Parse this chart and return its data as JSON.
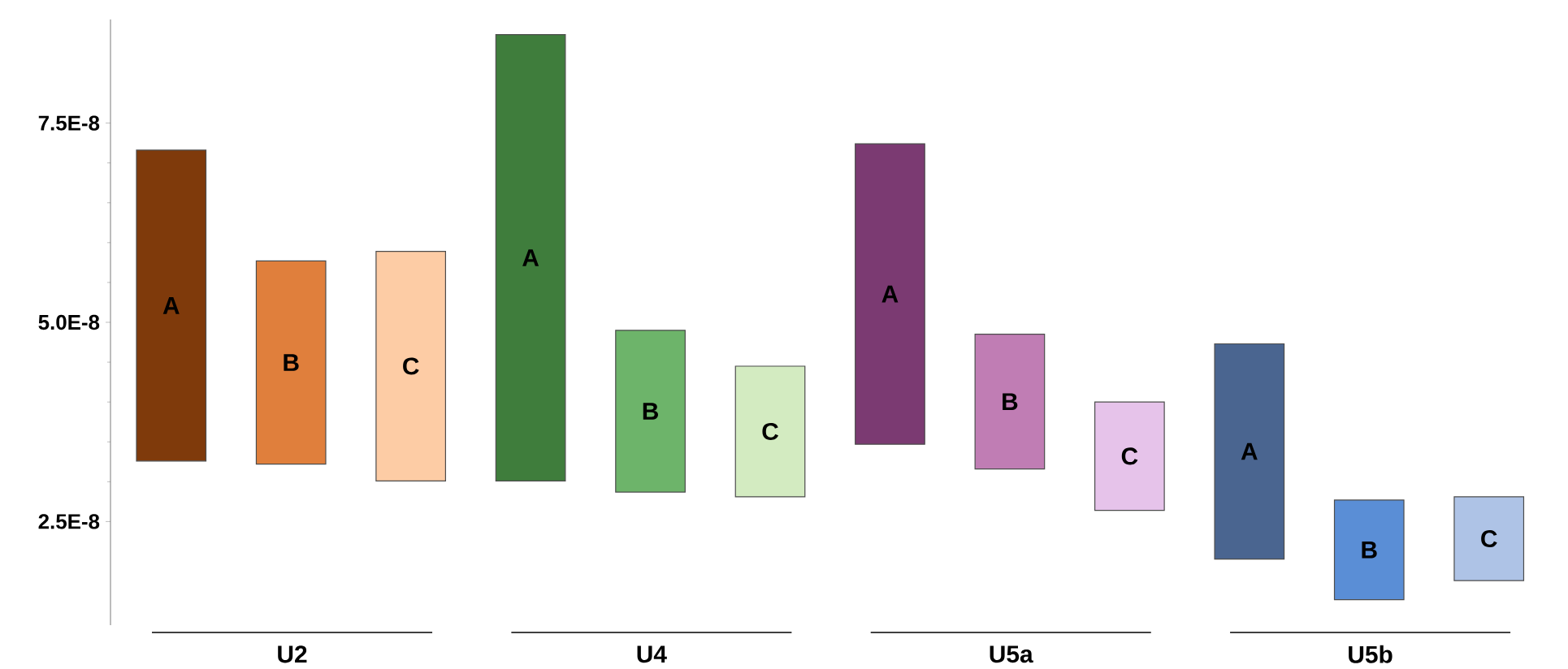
{
  "chart_data": {
    "type": "bar",
    "categories": [
      "U2",
      "U4",
      "U5a",
      "U5b"
    ],
    "series": [
      {
        "name": "A",
        "colors": [
          "#7f3a0b",
          "#3f7d3c",
          "#7b3a72",
          "#4a6590"
        ],
        "base": [
          3.26e-08,
          3.01e-08,
          3.47e-08,
          2.03e-08
        ],
        "values": [
          3.9e-08,
          5.6e-08,
          3.77e-08,
          2.7e-08
        ]
      },
      {
        "name": "B",
        "colors": [
          "#e07f3c",
          "#6db46a",
          "#c07db4",
          "#5a8ed6"
        ],
        "base": [
          3.22e-08,
          2.87e-08,
          3.16e-08,
          1.52e-08
        ],
        "values": [
          2.55e-08,
          2.03e-08,
          1.69e-08,
          1.25e-08
        ]
      },
      {
        "name": "C",
        "colors": [
          "#fdcca5",
          "#d3ebc1",
          "#e6c3ea",
          "#aec3e6"
        ],
        "base": [
          3.01e-08,
          2.81e-08,
          2.64e-08,
          1.76e-08
        ],
        "values": [
          2.88e-08,
          1.64e-08,
          1.36e-08,
          1.05e-08
        ]
      }
    ],
    "ylim": [
      1.2e-08,
      8.8e-08
    ],
    "yticks": [
      {
        "value": 2.5e-08,
        "label": "2.5E-8"
      },
      {
        "value": 5e-08,
        "label": "5.0E-8"
      },
      {
        "value": 7.5e-08,
        "label": "7.5E-8"
      }
    ]
  }
}
